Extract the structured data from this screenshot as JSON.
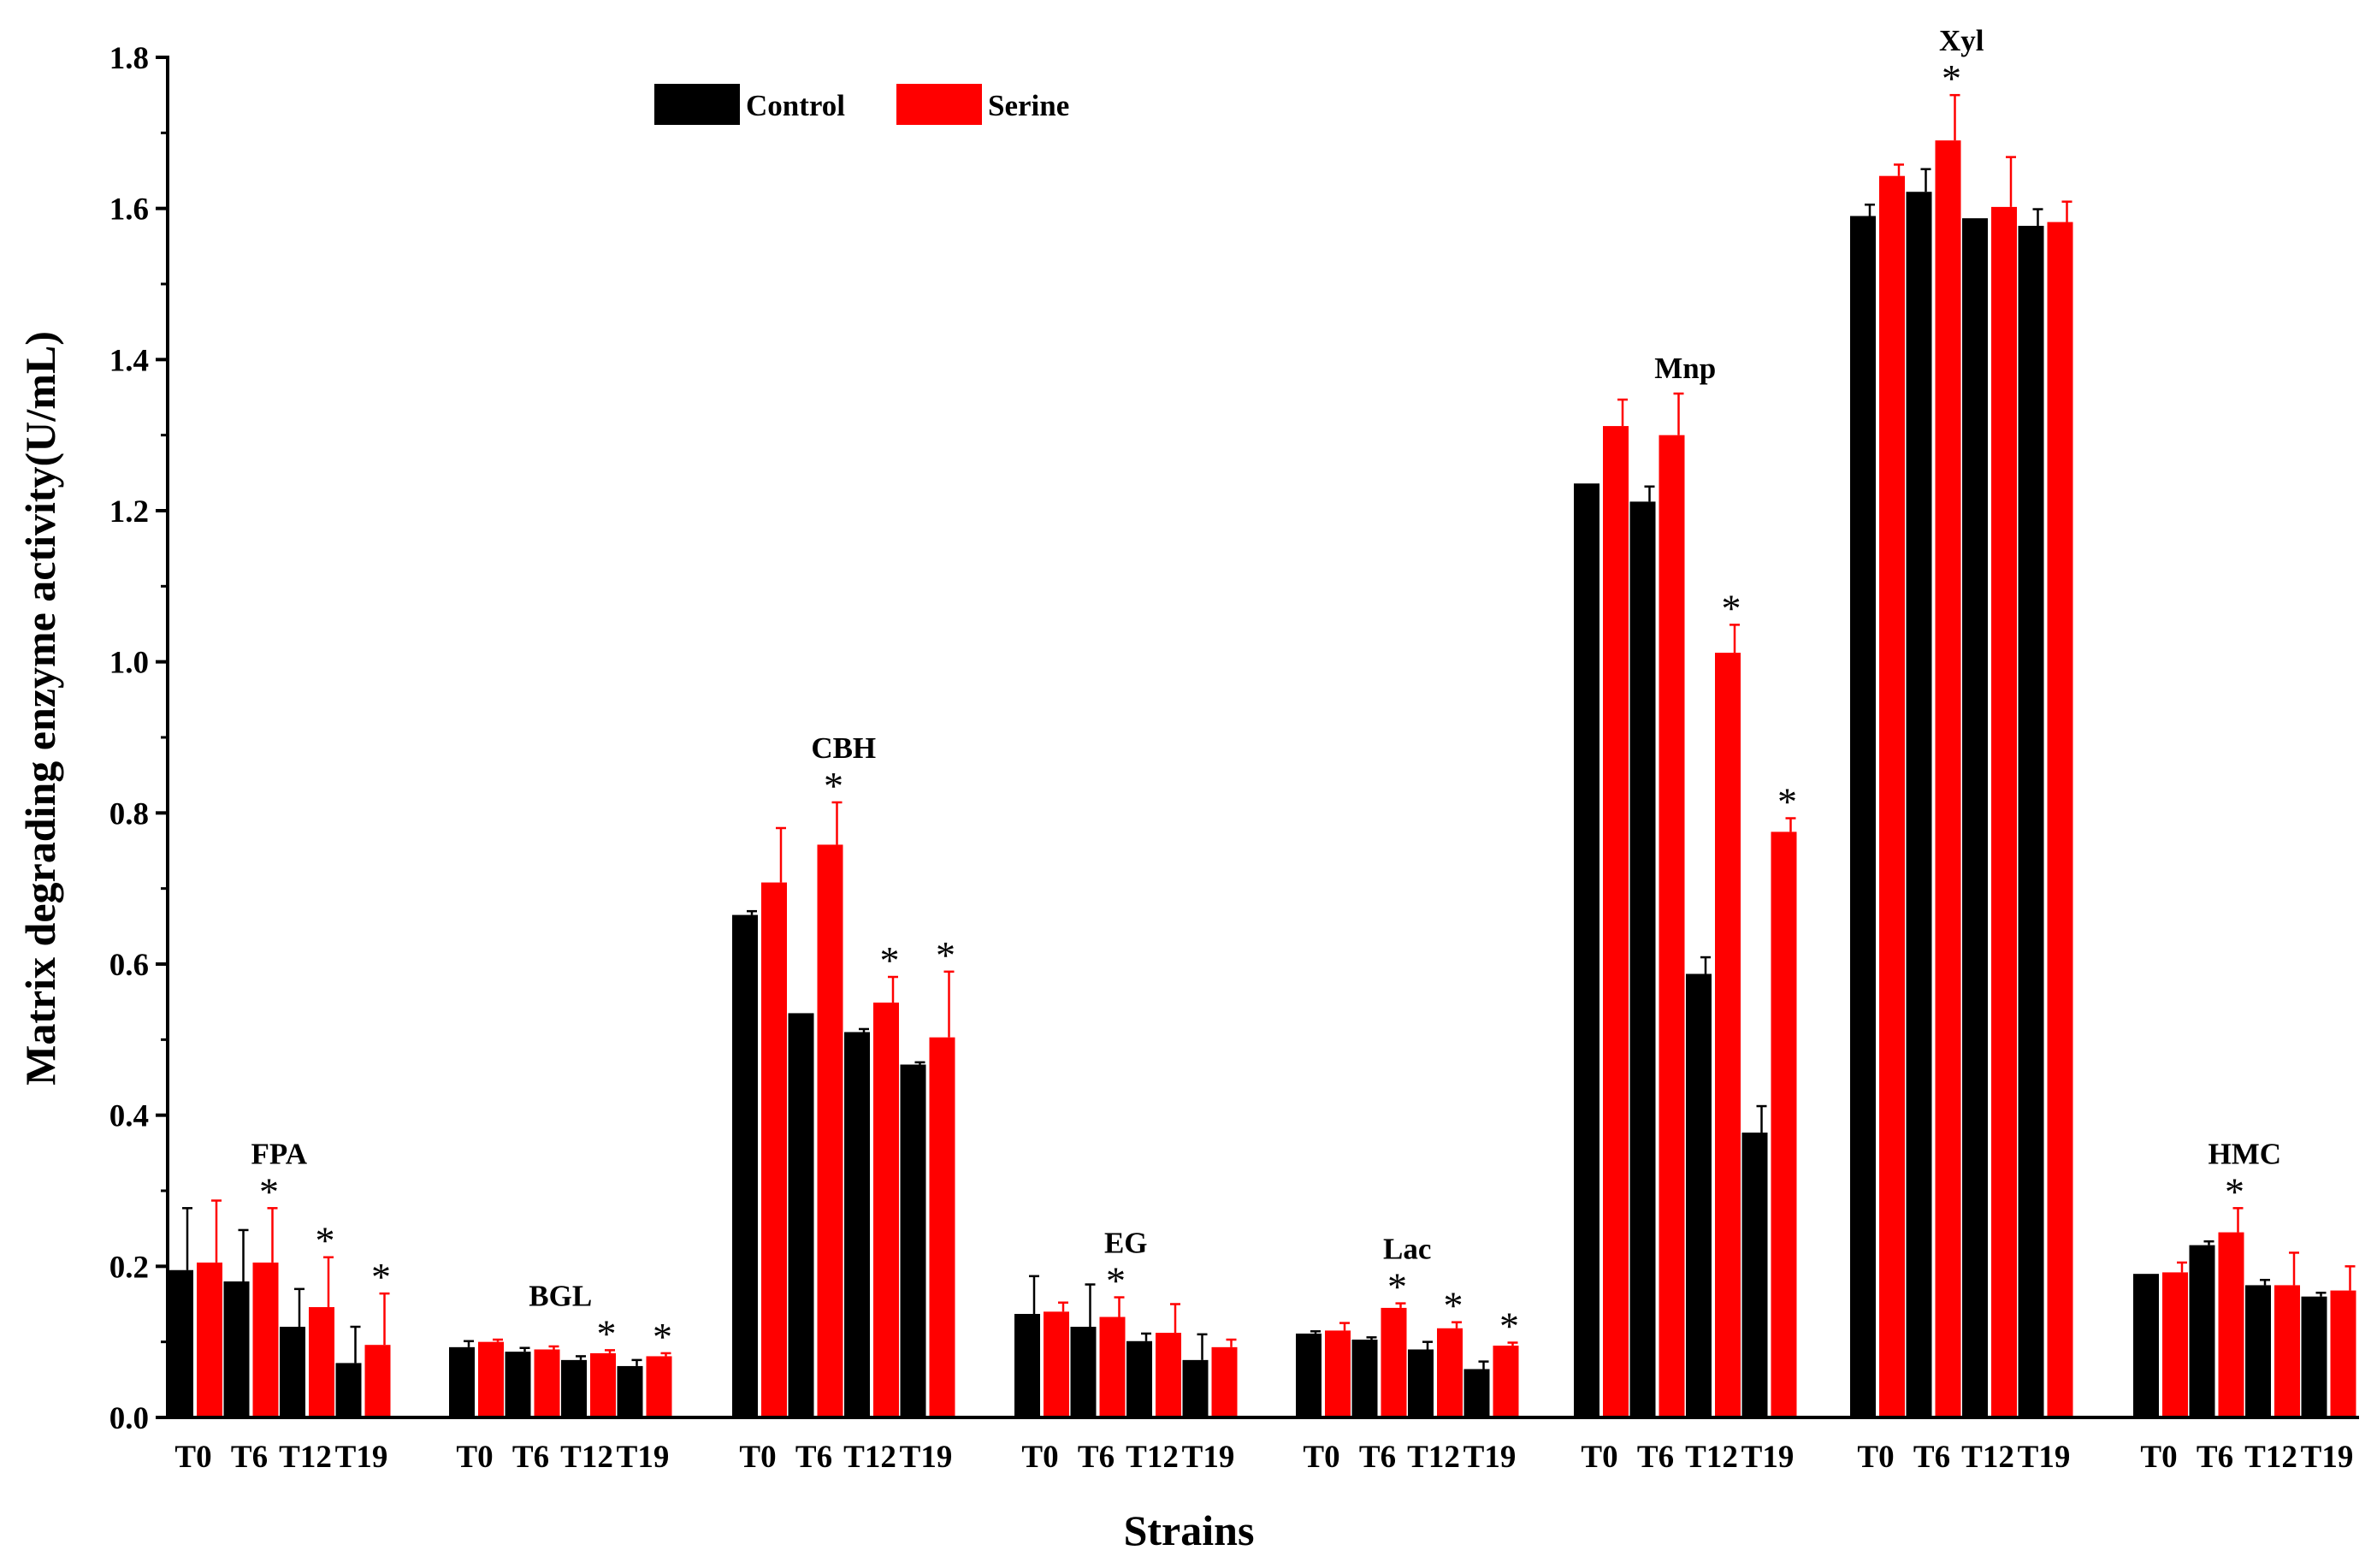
{
  "chart_data": {
    "type": "bar",
    "xlabel": "Strains",
    "ylabel": "Matrix degrading enzyme activity(U/mL)",
    "ylim": [
      0,
      1.8
    ],
    "yticks": [
      "0.0",
      "0.2",
      "0.4",
      "0.6",
      "0.8",
      "1.0",
      "1.2",
      "1.4",
      "1.6",
      "1.8"
    ],
    "grid": false,
    "legend_position": "top-left",
    "colors": {
      "Control": "#000000",
      "Serine": "#ff0000"
    },
    "time_points": [
      "T0",
      "T6",
      "T12",
      "T19"
    ],
    "significance_marker": "*",
    "series": [
      {
        "name": "Control",
        "color": "#000000"
      },
      {
        "name": "Serine",
        "color": "#ff0000"
      }
    ],
    "groups": [
      {
        "name": "FPA",
        "control": [
          0.195,
          0.18,
          0.12,
          0.072
        ],
        "control_err": [
          0.082,
          0.068,
          0.05,
          0.048
        ],
        "serine": [
          0.205,
          0.205,
          0.146,
          0.096
        ],
        "serine_err": [
          0.082,
          0.072,
          0.066,
          0.068
        ],
        "significant": [
          false,
          true,
          true,
          true
        ]
      },
      {
        "name": "BGL",
        "control": [
          0.093,
          0.087,
          0.076,
          0.068
        ],
        "control_err": [
          0.008,
          0.005,
          0.005,
          0.008
        ],
        "serine": [
          0.1,
          0.09,
          0.085,
          0.081
        ],
        "serine_err": [
          0.003,
          0.004,
          0.004,
          0.004
        ],
        "significant": [
          false,
          false,
          true,
          true
        ]
      },
      {
        "name": "CBH",
        "control": [
          0.665,
          0.535,
          0.51,
          0.467
        ],
        "control_err": [
          0.005,
          0.0,
          0.004,
          0.003
        ],
        "serine": [
          0.708,
          0.758,
          0.549,
          0.503
        ],
        "serine_err": [
          0.072,
          0.056,
          0.034,
          0.087
        ],
        "significant": [
          false,
          true,
          true,
          true
        ]
      },
      {
        "name": "EG",
        "control": [
          0.137,
          0.12,
          0.101,
          0.076
        ],
        "control_err": [
          0.05,
          0.056,
          0.01,
          0.034
        ],
        "serine": [
          0.14,
          0.133,
          0.112,
          0.093
        ],
        "serine_err": [
          0.012,
          0.026,
          0.038,
          0.01
        ],
        "significant": [
          false,
          true,
          false,
          false
        ]
      },
      {
        "name": "Lac",
        "control": [
          0.111,
          0.103,
          0.09,
          0.064
        ],
        "control_err": [
          0.003,
          0.003,
          0.01,
          0.01
        ],
        "serine": [
          0.115,
          0.145,
          0.118,
          0.095
        ],
        "serine_err": [
          0.01,
          0.006,
          0.008,
          0.004
        ],
        "significant": [
          false,
          true,
          true,
          true
        ]
      },
      {
        "name": "Mnp",
        "control": [
          1.236,
          1.212,
          0.587,
          0.377
        ],
        "control_err": [
          0.0,
          0.02,
          0.022,
          0.035
        ],
        "serine": [
          1.312,
          1.3,
          1.012,
          0.775
        ],
        "serine_err": [
          0.035,
          0.055,
          0.037,
          0.018
        ],
        "significant": [
          false,
          false,
          true,
          true
        ]
      },
      {
        "name": "Xyl",
        "control": [
          1.59,
          1.622,
          1.587,
          1.577
        ],
        "control_err": [
          0.015,
          0.03,
          0.0,
          0.022
        ],
        "serine": [
          1.643,
          1.69,
          1.602,
          1.582
        ],
        "serine_err": [
          0.015,
          0.06,
          0.066,
          0.027
        ],
        "significant": [
          false,
          true,
          false,
          false
        ]
      },
      {
        "name": "HMC",
        "control": [
          0.19,
          0.228,
          0.175,
          0.16
        ],
        "control_err": [
          0.0,
          0.005,
          0.007,
          0.005
        ],
        "serine": [
          0.192,
          0.245,
          0.175,
          0.168
        ],
        "serine_err": [
          0.013,
          0.032,
          0.043,
          0.032
        ],
        "significant": [
          false,
          true,
          false,
          false
        ]
      }
    ]
  }
}
